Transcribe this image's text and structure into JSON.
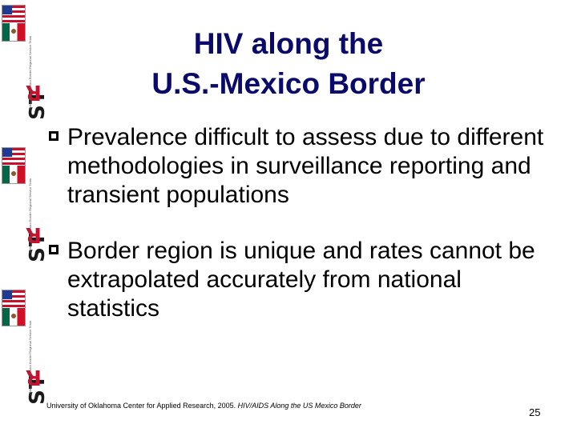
{
  "sidebar": {
    "brand": "UMBRST",
    "fine_print": "United States-Mexico Border Regional Service Team"
  },
  "slide": {
    "title_lines": [
      "HIV along the",
      "U.S.-Mexico Border"
    ],
    "bullets": [
      "Prevalence difficult to assess due to different methodologies in surveillance reporting and transient populations",
      "Border region is unique and rates cannot be extrapolated accurately from national statistics"
    ],
    "citation_prefix": "University of Oklahoma Center for Applied Research, 2005.",
    "citation_title": "HIV/AIDS Along the US Mexico Border",
    "page_number": "25"
  },
  "colors": {
    "title": "#0a0a6b",
    "ribbon": "#c8102e"
  }
}
